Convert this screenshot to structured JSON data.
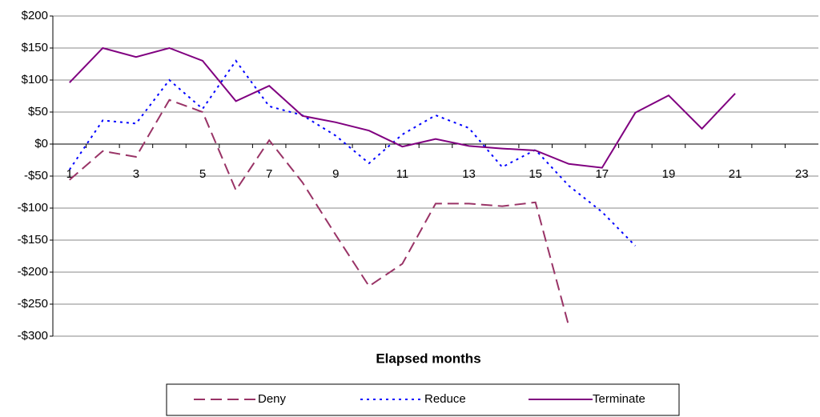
{
  "chart_data": {
    "type": "line",
    "xlabel": "Elapsed months",
    "categories": [
      "1",
      null,
      "3",
      null,
      "5",
      null,
      "7",
      null,
      "9",
      null,
      "11",
      null,
      "13",
      null,
      "15",
      null,
      "17",
      null,
      "19",
      null,
      "21",
      null,
      "23"
    ],
    "series": [
      {
        "name": "Deny",
        "color": "#993366",
        "style": "dashed",
        "values": [
          -56,
          -11,
          -20,
          69,
          50,
          -72,
          6,
          -60,
          -142,
          -222,
          -187,
          -93,
          -93,
          -97,
          -91,
          -284,
          null,
          null,
          null,
          null,
          null,
          null,
          null
        ]
      },
      {
        "name": "Reduce",
        "color": "#0000ff",
        "style": "dotted",
        "values": [
          -40,
          37,
          32,
          100,
          55,
          130,
          59,
          45,
          13,
          -30,
          15,
          45,
          25,
          -36,
          -9,
          -65,
          -106,
          -159,
          null,
          null,
          null,
          null,
          null
        ]
      },
      {
        "name": "Terminate",
        "color": "#800080",
        "style": "solid",
        "values": [
          96,
          150,
          136,
          150,
          130,
          67,
          91,
          44,
          34,
          21,
          -4,
          8,
          -3,
          -7,
          -10,
          -31,
          -37,
          49,
          76,
          24,
          79,
          null,
          null
        ]
      }
    ],
    "ylim": [
      -300,
      200
    ],
    "yticks": [
      {
        "value": -300,
        "label": "-$300"
      },
      {
        "value": -250,
        "label": "-$250"
      },
      {
        "value": -200,
        "label": "-$200"
      },
      {
        "value": -150,
        "label": "-$150"
      },
      {
        "value": -100,
        "label": "-$100"
      },
      {
        "value": -50,
        "label": "-$50"
      },
      {
        "value": 0,
        "label": "$0"
      },
      {
        "value": 50,
        "label": "$50"
      },
      {
        "value": 100,
        "label": "$100"
      },
      {
        "value": 150,
        "label": "$150"
      },
      {
        "value": 200,
        "label": "$200"
      }
    ],
    "grid": true,
    "legend": "bottom"
  }
}
